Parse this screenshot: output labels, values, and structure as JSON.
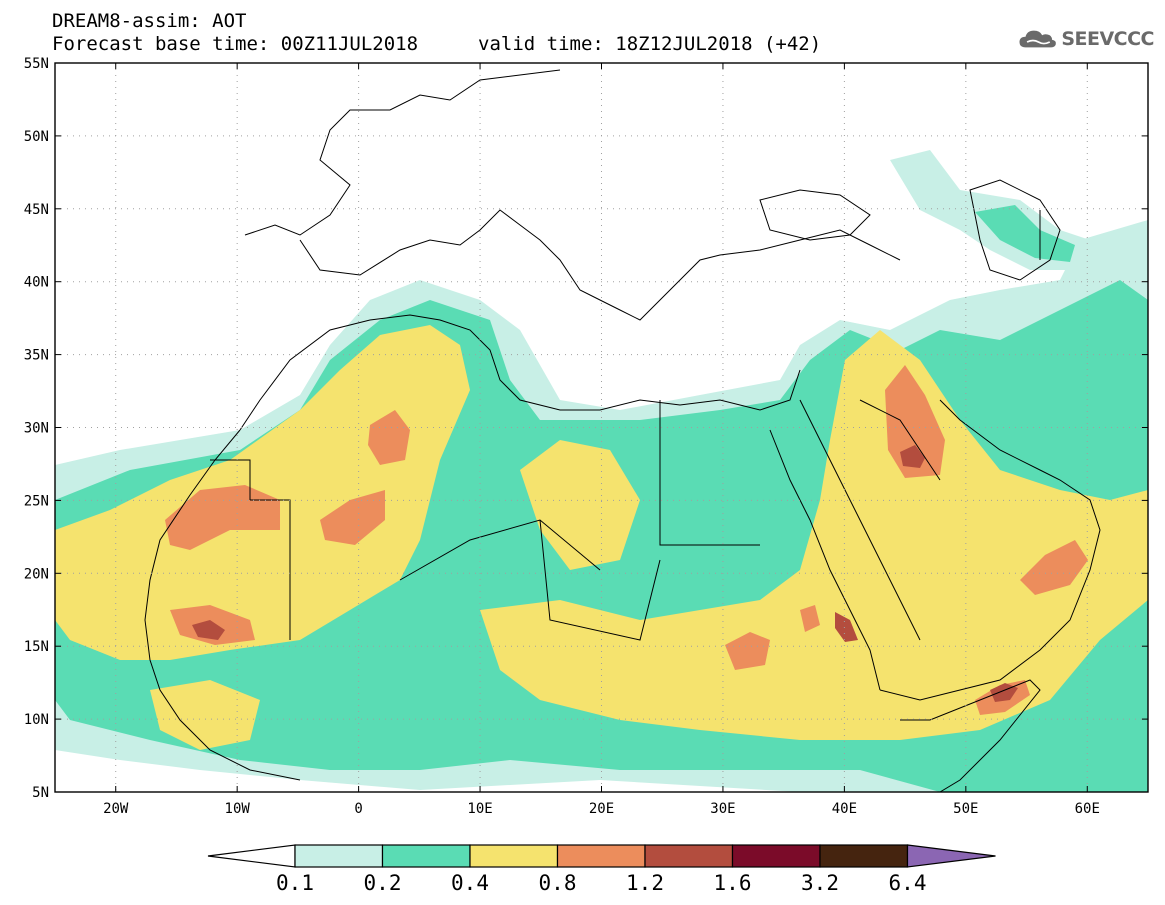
{
  "header": {
    "title": "DREAM8-assim: AOT",
    "base_time": "Forecast base time: 00Z11JUL2018",
    "valid_time": "valid time: 18Z12JUL2018 (+42)",
    "logo_text": "SEEVCCC",
    "logo_icon": "cloud-icon"
  },
  "map": {
    "lon_range": [
      -25,
      65
    ],
    "lat_range": [
      5,
      55
    ],
    "lat_ticks": [
      {
        "value": 55,
        "label": "55N"
      },
      {
        "value": 50,
        "label": "50N"
      },
      {
        "value": 45,
        "label": "45N"
      },
      {
        "value": 40,
        "label": "40N"
      },
      {
        "value": 35,
        "label": "35N"
      },
      {
        "value": 30,
        "label": "30N"
      },
      {
        "value": 25,
        "label": "25N"
      },
      {
        "value": 20,
        "label": "20N"
      },
      {
        "value": 15,
        "label": "15N"
      },
      {
        "value": 10,
        "label": "10N"
      },
      {
        "value": 5,
        "label": "5N"
      }
    ],
    "lon_ticks": [
      {
        "value": -20,
        "label": "20W"
      },
      {
        "value": -10,
        "label": "10W"
      },
      {
        "value": 0,
        "label": "0"
      },
      {
        "value": 10,
        "label": "10E"
      },
      {
        "value": 20,
        "label": "20E"
      },
      {
        "value": 30,
        "label": "30E"
      },
      {
        "value": 40,
        "label": "40E"
      },
      {
        "value": 50,
        "label": "50E"
      },
      {
        "value": 60,
        "label": "60E"
      }
    ],
    "grid": true
  },
  "colorbar": {
    "colors": [
      "#ffffff",
      "#c8f0e6",
      "#5ade b4",
      "#f6e46e",
      "#ec8c5a",
      "#b44c3c",
      "#7c0a2a",
      "#46220f",
      "#8c64b4"
    ],
    "segment_colors": [
      "#c8efe6",
      "#5adcb4",
      "#f5e36e",
      "#ec8d5c",
      "#b34d3e",
      "#7b0b29",
      "#45240f"
    ],
    "under_color": "#ffffff",
    "over_color": "#8b66b3",
    "labels": [
      "0.1",
      "0.2",
      "0.4",
      "0.8",
      "1.2",
      "1.6",
      "3.2",
      "6.4"
    ]
  }
}
